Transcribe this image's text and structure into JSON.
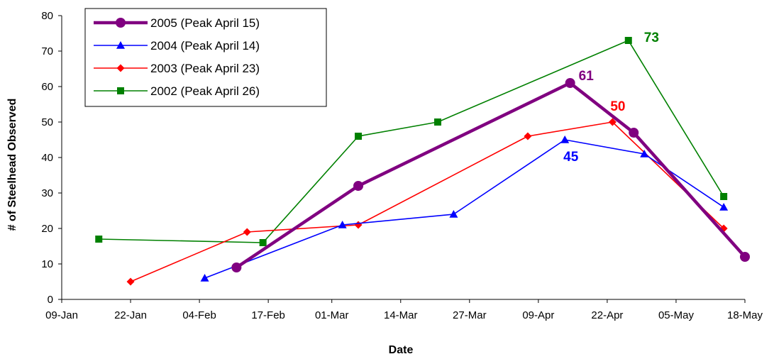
{
  "chart_data": {
    "type": "line",
    "title": "",
    "xlabel": "Date",
    "ylabel": "# of Steelhead Observed",
    "ylim": [
      0,
      80
    ],
    "y_ticks": [
      "0",
      "10",
      "20",
      "30",
      "40",
      "50",
      "60",
      "70",
      "80"
    ],
    "x_tick_labels": [
      "09-Jan",
      "22-Jan",
      "04-Feb",
      "17-Feb",
      "01-Mar",
      "14-Mar",
      "27-Mar",
      "09-Apr",
      "22-Apr",
      "05-May",
      "18-May"
    ],
    "x_tick_dates": [
      "01-09",
      "01-22",
      "02-04",
      "02-17",
      "03-01",
      "03-14",
      "03-27",
      "04-09",
      "04-22",
      "05-05",
      "05-18"
    ],
    "xlim": [
      "01-09",
      "05-18"
    ],
    "grid": false,
    "legend_position": "top-left",
    "series": [
      {
        "name": "2005 (Peak April 15)",
        "color": "#800080",
        "marker": "circle",
        "points": [
          [
            "02-11",
            9
          ],
          [
            "03-06",
            32
          ],
          [
            "04-15",
            61
          ],
          [
            "04-27",
            47
          ],
          [
            "05-18",
            12
          ]
        ]
      },
      {
        "name": "2004 (Peak April 14)",
        "color": "#0000ff",
        "marker": "triangle",
        "points": [
          [
            "02-05",
            6
          ],
          [
            "03-03",
            21
          ],
          [
            "03-24",
            24
          ],
          [
            "04-14",
            45
          ],
          [
            "04-29",
            41
          ],
          [
            "05-14",
            26
          ]
        ]
      },
      {
        "name": "2003 (Peak April 23)",
        "color": "#ff0000",
        "marker": "diamond",
        "points": [
          [
            "01-22",
            5
          ],
          [
            "02-13",
            19
          ],
          [
            "03-06",
            21
          ],
          [
            "04-07",
            46
          ],
          [
            "04-23",
            50
          ],
          [
            "05-14",
            20
          ]
        ]
      },
      {
        "name": "2002 (Peak April 26)",
        "color": "#008000",
        "marker": "square",
        "points": [
          [
            "01-16",
            17
          ],
          [
            "02-16",
            16
          ],
          [
            "03-06",
            46
          ],
          [
            "03-21",
            50
          ],
          [
            "04-26",
            73
          ],
          [
            "05-14",
            29
          ]
        ]
      }
    ],
    "annotations": [
      {
        "text": "61",
        "series": 0,
        "point": 2,
        "color": "#800080"
      },
      {
        "text": "45",
        "series": 1,
        "point": 3,
        "color": "#0000ff"
      },
      {
        "text": "50",
        "series": 2,
        "point": 4,
        "color": "#ff0000"
      },
      {
        "text": "73",
        "series": 3,
        "point": 4,
        "color": "#008000"
      }
    ]
  }
}
